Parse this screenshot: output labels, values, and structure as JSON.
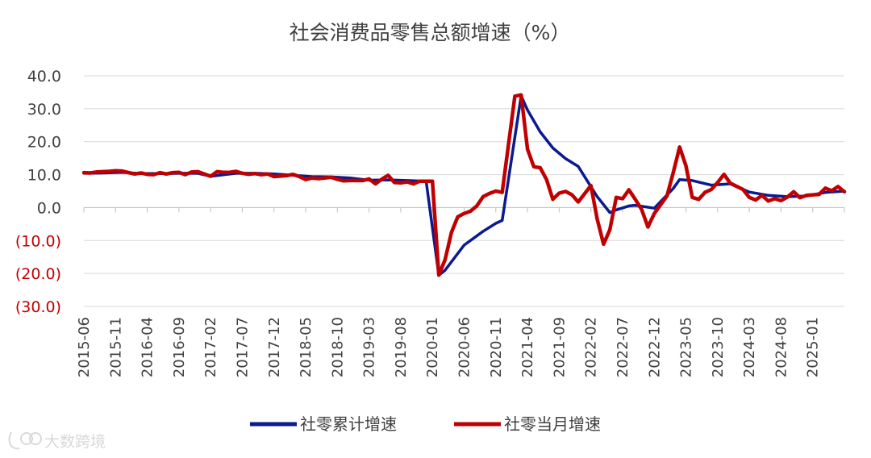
{
  "chart_data": {
    "type": "line",
    "title": "社会消费品零售总额增速（%）",
    "xlabel": "",
    "ylabel": "",
    "ylim": [
      -30,
      40
    ],
    "y_ticks": [
      40,
      30,
      20,
      10,
      0,
      -10,
      -20,
      -30
    ],
    "y_tick_labels": [
      "40.0",
      "30.0",
      "20.0",
      "10.0",
      "0.0",
      "(10.0)",
      "(20.0)",
      "(30.0)"
    ],
    "x_tick_labels": [
      "2015-06",
      "2015-11",
      "2016-04",
      "2016-09",
      "2017-02",
      "2017-07",
      "2017-12",
      "2018-05",
      "2018-10",
      "2019-03",
      "2019-08",
      "2020-01",
      "2020-06",
      "2020-11",
      "2021-04",
      "2021-09",
      "2022-02",
      "2022-07",
      "2022-12",
      "2023-05",
      "2023-10",
      "2024-03",
      "2024-08",
      "2025-01"
    ],
    "x_range": [
      "2015-06",
      "2025-06"
    ],
    "grid": true,
    "legend_position": "bottom",
    "colors": {
      "cumulative": "#0a1a8f",
      "monthly": "#c00000",
      "negative_tick": "#c00000",
      "positive_tick": "#404040",
      "grid": "#d9d9d9"
    },
    "series": [
      {
        "name": "社零累计增速",
        "points": [
          [
            "2015-06",
            10.4
          ],
          [
            "2015-09",
            10.5
          ],
          [
            "2015-12",
            10.7
          ],
          [
            "2016-03",
            10.3
          ],
          [
            "2016-06",
            10.3
          ],
          [
            "2016-09",
            10.4
          ],
          [
            "2016-12",
            10.4
          ],
          [
            "2017-02",
            9.5
          ],
          [
            "2017-06",
            10.4
          ],
          [
            "2017-09",
            10.4
          ],
          [
            "2017-12",
            10.2
          ],
          [
            "2018-03",
            9.8
          ],
          [
            "2018-06",
            9.4
          ],
          [
            "2018-09",
            9.3
          ],
          [
            "2018-12",
            9.0
          ],
          [
            "2019-03",
            8.3
          ],
          [
            "2019-06",
            8.4
          ],
          [
            "2019-09",
            8.2
          ],
          [
            "2019-12",
            8.0
          ],
          [
            "2020-02",
            -20.5
          ],
          [
            "2020-03",
            -19.0
          ],
          [
            "2020-06",
            -11.4
          ],
          [
            "2020-09",
            -7.2
          ],
          [
            "2020-11",
            -4.8
          ],
          [
            "2020-12",
            -3.9
          ],
          [
            "2021-03",
            33.9
          ],
          [
            "2021-04",
            29.6
          ],
          [
            "2021-06",
            23.0
          ],
          [
            "2021-08",
            18.1
          ],
          [
            "2021-10",
            14.9
          ],
          [
            "2021-12",
            12.5
          ],
          [
            "2022-03",
            3.3
          ],
          [
            "2022-05",
            -1.5
          ],
          [
            "2022-06",
            -0.7
          ],
          [
            "2022-08",
            0.5
          ],
          [
            "2022-09",
            0.7
          ],
          [
            "2022-12",
            -0.2
          ],
          [
            "2023-03",
            5.8
          ],
          [
            "2023-04",
            8.5
          ],
          [
            "2023-06",
            8.2
          ],
          [
            "2023-09",
            6.8
          ],
          [
            "2023-12",
            7.2
          ],
          [
            "2024-03",
            4.7
          ],
          [
            "2024-06",
            3.7
          ],
          [
            "2024-09",
            3.3
          ],
          [
            "2024-12",
            3.5
          ],
          [
            "2025-03",
            4.6
          ],
          [
            "2025-06",
            5.0
          ]
        ]
      },
      {
        "name": "社零当月增速",
        "points": [
          [
            "2015-06",
            10.6
          ],
          [
            "2015-07",
            10.5
          ],
          [
            "2015-08",
            10.8
          ],
          [
            "2015-09",
            10.9
          ],
          [
            "2015-10",
            11.0
          ],
          [
            "2015-11",
            11.2
          ],
          [
            "2015-12",
            11.1
          ],
          [
            "2016-02",
            10.2
          ],
          [
            "2016-03",
            10.5
          ],
          [
            "2016-04",
            10.1
          ],
          [
            "2016-05",
            10.0
          ],
          [
            "2016-06",
            10.6
          ],
          [
            "2016-07",
            10.2
          ],
          [
            "2016-08",
            10.6
          ],
          [
            "2016-09",
            10.7
          ],
          [
            "2016-10",
            10.0
          ],
          [
            "2016-11",
            10.8
          ],
          [
            "2016-12",
            10.9
          ],
          [
            "2017-02",
            9.5
          ],
          [
            "2017-03",
            10.9
          ],
          [
            "2017-04",
            10.7
          ],
          [
            "2017-05",
            10.7
          ],
          [
            "2017-06",
            11.0
          ],
          [
            "2017-07",
            10.4
          ],
          [
            "2017-08",
            10.1
          ],
          [
            "2017-09",
            10.3
          ],
          [
            "2017-10",
            10.0
          ],
          [
            "2017-11",
            10.2
          ],
          [
            "2017-12",
            9.4
          ],
          [
            "2018-02",
            9.7
          ],
          [
            "2018-03",
            10.1
          ],
          [
            "2018-04",
            9.4
          ],
          [
            "2018-05",
            8.5
          ],
          [
            "2018-06",
            9.0
          ],
          [
            "2018-07",
            8.8
          ],
          [
            "2018-08",
            9.0
          ],
          [
            "2018-09",
            9.2
          ],
          [
            "2018-10",
            8.6
          ],
          [
            "2018-11",
            8.1
          ],
          [
            "2018-12",
            8.2
          ],
          [
            "2019-02",
            8.2
          ],
          [
            "2019-03",
            8.7
          ],
          [
            "2019-04",
            7.2
          ],
          [
            "2019-05",
            8.6
          ],
          [
            "2019-06",
            9.8
          ],
          [
            "2019-07",
            7.6
          ],
          [
            "2019-08",
            7.5
          ],
          [
            "2019-09",
            7.8
          ],
          [
            "2019-10",
            7.2
          ],
          [
            "2019-11",
            8.0
          ],
          [
            "2019-12",
            8.0
          ],
          [
            "2020-01",
            8.0
          ],
          [
            "2020-02",
            -20.5
          ],
          [
            "2020-03",
            -15.8
          ],
          [
            "2020-04",
            -7.5
          ],
          [
            "2020-05",
            -2.8
          ],
          [
            "2020-06",
            -1.8
          ],
          [
            "2020-07",
            -1.1
          ],
          [
            "2020-08",
            0.5
          ],
          [
            "2020-09",
            3.3
          ],
          [
            "2020-10",
            4.3
          ],
          [
            "2020-11",
            5.0
          ],
          [
            "2020-12",
            4.6
          ],
          [
            "2021-02",
            33.8
          ],
          [
            "2021-03",
            34.2
          ],
          [
            "2021-04",
            17.7
          ],
          [
            "2021-05",
            12.4
          ],
          [
            "2021-06",
            12.1
          ],
          [
            "2021-07",
            8.5
          ],
          [
            "2021-08",
            2.5
          ],
          [
            "2021-09",
            4.4
          ],
          [
            "2021-10",
            4.9
          ],
          [
            "2021-11",
            3.9
          ],
          [
            "2021-12",
            1.7
          ],
          [
            "2022-02",
            6.7
          ],
          [
            "2022-03",
            -3.5
          ],
          [
            "2022-04",
            -11.1
          ],
          [
            "2022-05",
            -6.7
          ],
          [
            "2022-06",
            3.1
          ],
          [
            "2022-07",
            2.7
          ],
          [
            "2022-08",
            5.4
          ],
          [
            "2022-09",
            2.5
          ],
          [
            "2022-10",
            -0.5
          ],
          [
            "2022-11",
            -5.9
          ],
          [
            "2022-12",
            -1.8
          ],
          [
            "2023-02",
            3.5
          ],
          [
            "2023-03",
            10.6
          ],
          [
            "2023-04",
            18.4
          ],
          [
            "2023-05",
            12.7
          ],
          [
            "2023-06",
            3.1
          ],
          [
            "2023-07",
            2.5
          ],
          [
            "2023-08",
            4.6
          ],
          [
            "2023-09",
            5.5
          ],
          [
            "2023-10",
            7.6
          ],
          [
            "2023-11",
            10.1
          ],
          [
            "2023-12",
            7.4
          ],
          [
            "2024-02",
            5.5
          ],
          [
            "2024-03",
            3.1
          ],
          [
            "2024-04",
            2.3
          ],
          [
            "2024-05",
            3.7
          ],
          [
            "2024-06",
            2.0
          ],
          [
            "2024-07",
            2.7
          ],
          [
            "2024-08",
            2.1
          ],
          [
            "2024-09",
            3.2
          ],
          [
            "2024-10",
            4.8
          ],
          [
            "2024-11",
            3.0
          ],
          [
            "2024-12",
            3.7
          ],
          [
            "2025-02",
            4.0
          ],
          [
            "2025-03",
            5.9
          ],
          [
            "2025-04",
            5.1
          ],
          [
            "2025-05",
            6.4
          ],
          [
            "2025-06",
            4.8
          ]
        ]
      }
    ]
  },
  "watermark": {
    "text": "大数跨境",
    "icon": "brand-logo-icon"
  }
}
